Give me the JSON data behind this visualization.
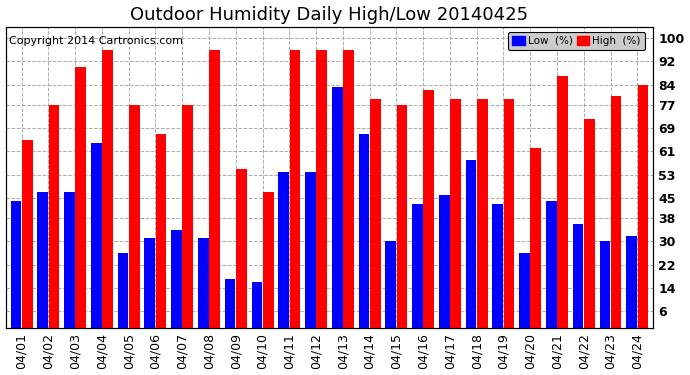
{
  "title": "Outdoor Humidity Daily High/Low 20140425",
  "copyright": "Copyright 2014 Cartronics.com",
  "categories": [
    "04/01",
    "04/02",
    "04/03",
    "04/04",
    "04/05",
    "04/06",
    "04/07",
    "04/08",
    "04/09",
    "04/10",
    "04/11",
    "04/12",
    "04/13",
    "04/14",
    "04/15",
    "04/16",
    "04/17",
    "04/18",
    "04/19",
    "04/20",
    "04/21",
    "04/22",
    "04/23",
    "04/24"
  ],
  "high_values": [
    65,
    77,
    90,
    96,
    77,
    67,
    77,
    96,
    55,
    47,
    96,
    96,
    96,
    79,
    77,
    82,
    79,
    79,
    79,
    62,
    87,
    72,
    80,
    84
  ],
  "low_values": [
    44,
    47,
    47,
    64,
    26,
    31,
    34,
    31,
    17,
    16,
    54,
    54,
    83,
    67,
    30,
    43,
    46,
    58,
    43,
    26,
    44,
    36,
    30,
    32
  ],
  "bar_color_high": "#ff0000",
  "bar_color_low": "#0000ff",
  "background_color": "#ffffff",
  "grid_color": "#aaaaaa",
  "yticks": [
    6,
    14,
    22,
    30,
    38,
    45,
    53,
    61,
    69,
    77,
    84,
    92,
    100
  ],
  "ylim": [
    0,
    104
  ],
  "legend_low_label": "Low  (%)",
  "legend_high_label": "High  (%)",
  "title_fontsize": 13,
  "tick_fontsize": 9,
  "copyright_fontsize": 8
}
